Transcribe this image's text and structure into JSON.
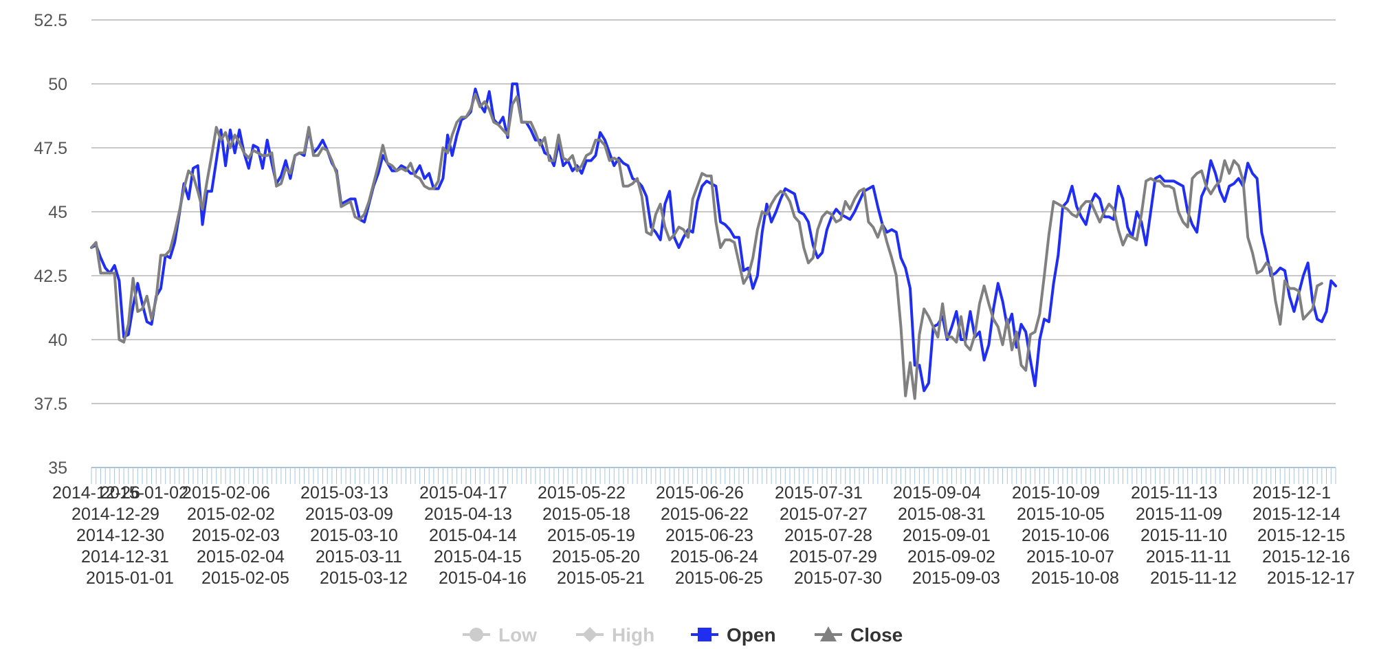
{
  "chart_data": {
    "type": "line",
    "title": "",
    "xlabel": "",
    "ylabel": "",
    "ylim": [
      35,
      52.5
    ],
    "y_ticks": [
      35,
      37.5,
      40,
      42.5,
      45,
      47.5,
      50,
      52.5
    ],
    "grid": true,
    "legend_position": "bottom-center",
    "x_tick_labels": [
      [
        "2014-12-26",
        "2015-01-02"
      ],
      [
        "2015-02-06",
        "2015-02-02",
        "2015-02-03",
        "2015-02-04",
        "2015-02-05"
      ],
      [
        "2015-03-13",
        "2015-03-09",
        "2015-03-10",
        "2015-03-11",
        "2015-03-12"
      ],
      [
        "2015-04-17",
        "2015-04-13",
        "2015-04-14",
        "2015-04-15",
        "2015-04-16"
      ],
      [
        "2015-05-22",
        "2015-05-18",
        "2015-05-19",
        "2015-05-20",
        "2015-05-21"
      ],
      [
        "2015-06-26",
        "2015-06-22",
        "2015-06-23",
        "2015-06-24",
        "2015-06-25"
      ],
      [
        "2015-07-31",
        "2015-07-27",
        "2015-07-28",
        "2015-07-29",
        "2015-07-30"
      ],
      [
        "2015-09-04",
        "2015-08-31",
        "2015-09-01",
        "2015-09-02",
        "2015-09-03"
      ],
      [
        "2015-10-09",
        "2015-10-05",
        "2015-10-06",
        "2015-10-07",
        "2015-10-08"
      ],
      [
        "2015-11-13",
        "2015-11-09",
        "2015-11-10",
        "2015-11-11",
        "2015-11-12"
      ],
      [
        "2015-12-1",
        "2015-12-14",
        "2015-12-15",
        "2015-12-16",
        "2015-12-17"
      ]
    ],
    "x_tick_label_extra": [
      "2014-12-29",
      "2014-12-30",
      "2014-12-31",
      "2015-01-01"
    ],
    "legend": [
      {
        "name": "Low",
        "visible": false,
        "marker": "circle",
        "color": "#cccccc"
      },
      {
        "name": "High",
        "visible": false,
        "marker": "diamond",
        "color": "#cccccc"
      },
      {
        "name": "Open",
        "visible": true,
        "marker": "square",
        "color": "#1f2ef0"
      },
      {
        "name": "Close",
        "visible": true,
        "marker": "triangle",
        "color": "#808080"
      }
    ],
    "series": [
      {
        "name": "Open",
        "color": "#1f2ef0",
        "values": [
          43.6,
          43.7,
          43.2,
          42.8,
          42.6,
          42.9,
          42.3,
          40.1,
          40.2,
          41.3,
          42.2,
          41.4,
          40.7,
          40.6,
          41.7,
          42.0,
          43.3,
          43.2,
          43.8,
          44.9,
          46.1,
          45.5,
          46.7,
          46.8,
          44.5,
          45.8,
          45.8,
          47.0,
          48.2,
          46.8,
          48.2,
          47.3,
          48.2,
          47.3,
          46.7,
          47.6,
          47.5,
          46.7,
          47.8,
          46.9,
          46.1,
          46.4,
          47.0,
          46.3,
          47.2,
          47.3,
          47.2,
          48.2,
          47.3,
          47.5,
          47.8,
          47.4,
          46.9,
          46.6,
          45.3,
          45.4,
          45.5,
          45.5,
          44.7,
          44.6,
          45.3,
          46.0,
          46.5,
          47.2,
          46.9,
          46.6,
          46.6,
          46.8,
          46.7,
          46.5,
          46.5,
          46.8,
          46.3,
          46.5,
          45.9,
          45.9,
          46.3,
          48.0,
          47.2,
          48.0,
          48.6,
          48.7,
          48.9,
          49.8,
          49.2,
          48.9,
          49.7,
          48.6,
          48.4,
          48.7,
          47.9,
          50.0,
          50.0,
          48.5,
          48.5,
          48.2,
          47.8,
          47.8,
          47.3,
          47.2,
          46.8,
          47.7,
          46.8,
          47.0,
          46.6,
          46.8,
          46.5,
          47.0,
          47.0,
          47.2,
          48.1,
          47.8,
          47.3,
          46.8,
          47.1,
          46.9,
          46.8,
          46.3,
          46.2,
          46.0,
          45.6,
          44.4,
          44.2,
          43.9,
          45.3,
          45.8,
          44.0,
          43.6,
          44.0,
          44.3,
          44.2,
          45.4,
          46.0,
          46.2,
          46.1,
          46.0,
          44.6,
          44.5,
          44.3,
          44.0,
          44.0,
          42.7,
          42.8,
          42.0,
          42.5,
          44.2,
          45.3,
          44.6,
          45.0,
          45.5,
          45.9,
          45.8,
          45.7,
          45.0,
          44.9,
          44.6,
          43.7,
          43.2,
          43.4,
          44.3,
          44.8,
          45.1,
          44.9,
          44.8,
          44.7,
          45.0,
          45.4,
          45.8,
          45.9,
          46.0,
          45.2,
          44.5,
          44.2,
          44.3,
          44.2,
          43.2,
          42.8,
          42.0,
          39.0,
          39.0,
          38.0,
          38.3,
          40.5,
          40.6,
          40.9,
          40.0,
          40.5,
          41.1,
          40.0,
          40.0,
          41.1,
          40.1,
          40.3,
          39.2,
          39.8,
          41.2,
          42.2,
          41.5,
          40.5,
          41.0,
          39.7,
          40.6,
          40.3,
          39.2,
          38.2,
          40.0,
          40.8,
          40.7,
          42.2,
          43.3,
          45.2,
          45.4,
          46.0,
          45.2,
          44.8,
          44.5,
          45.3,
          45.7,
          45.5,
          44.8,
          44.8,
          44.7,
          46.0,
          45.5,
          44.4,
          44.0,
          45.0,
          44.6,
          43.7,
          45.0,
          46.3,
          46.4,
          46.2,
          46.2,
          46.2,
          46.1,
          46.0,
          45.0,
          44.5,
          44.2,
          45.6,
          46.0,
          47.0,
          46.5,
          45.8,
          45.4,
          46.0,
          46.1,
          46.3,
          46.0,
          46.9,
          46.5,
          46.3,
          44.2,
          43.4,
          42.5,
          42.6,
          42.8,
          42.7,
          41.7,
          41.1,
          41.8,
          42.5,
          43.0,
          41.5,
          40.8,
          40.7,
          41.1,
          42.3,
          42.1
        ]
      },
      {
        "name": "Close",
        "color": "#808080",
        "values": [
          43.6,
          43.8,
          42.6,
          42.6,
          42.6,
          42.6,
          40.0,
          39.9,
          40.6,
          42.4,
          41.1,
          41.2,
          41.7,
          40.8,
          41.6,
          43.3,
          43.3,
          43.5,
          44.2,
          45.0,
          45.9,
          46.6,
          46.4,
          45.8,
          45.1,
          46.2,
          47.2,
          48.3,
          47.8,
          48.1,
          47.5,
          48.0,
          47.7,
          47.3,
          47.1,
          47.4,
          47.3,
          47.2,
          47.2,
          47.3,
          46.0,
          46.1,
          46.7,
          46.5,
          47.2,
          47.3,
          47.3,
          48.3,
          47.2,
          47.2,
          47.5,
          47.4,
          47.0,
          46.5,
          45.2,
          45.3,
          45.4,
          44.8,
          44.7,
          44.9,
          45.4,
          46.1,
          46.8,
          47.6,
          46.9,
          46.8,
          46.6,
          46.7,
          46.6,
          46.9,
          46.4,
          46.3,
          46.0,
          45.9,
          45.9,
          46.2,
          47.5,
          47.3,
          48.0,
          48.5,
          48.7,
          48.7,
          49.0,
          49.6,
          49.1,
          49.3,
          49.0,
          48.5,
          48.4,
          48.2,
          48.0,
          49.2,
          49.5,
          48.5,
          48.5,
          48.5,
          48.1,
          47.6,
          47.9,
          47.0,
          47.0,
          48.0,
          47.1,
          47.0,
          47.2,
          46.6,
          46.8,
          47.2,
          47.3,
          47.8,
          47.8,
          47.6,
          47.0,
          47.1,
          47.0,
          46.0,
          46.0,
          46.1,
          46.3,
          45.6,
          44.2,
          44.1,
          44.9,
          45.3,
          44.4,
          43.9,
          44.1,
          44.4,
          44.3,
          44.0,
          45.5,
          46.0,
          46.5,
          46.4,
          46.4,
          44.6,
          43.6,
          43.9,
          43.9,
          43.8,
          43.0,
          42.2,
          42.5,
          43.2,
          44.3,
          45.0,
          44.9,
          45.3,
          45.6,
          45.8,
          45.7,
          45.4,
          44.8,
          44.6,
          43.6,
          43.0,
          43.2,
          44.3,
          44.8,
          45.0,
          44.9,
          44.6,
          44.7,
          45.4,
          45.1,
          45.5,
          45.8,
          45.9,
          44.6,
          44.4,
          44.0,
          44.5,
          43.8,
          43.2,
          42.5,
          40.5,
          37.8,
          39.1,
          37.7,
          40.2,
          41.2,
          40.9,
          40.5,
          40.1,
          41.4,
          40.1,
          40.1,
          39.9,
          40.9,
          39.8,
          39.6,
          40.2,
          41.4,
          42.1,
          41.4,
          40.8,
          40.5,
          39.8,
          40.8,
          39.6,
          40.3,
          39.0,
          38.8,
          40.2,
          40.3,
          41.0,
          42.5,
          44.1,
          45.4,
          45.3,
          45.2,
          45.1,
          44.9,
          44.8,
          45.2,
          45.4,
          45.4,
          45.0,
          44.6,
          45.0,
          45.3,
          45.1,
          44.3,
          43.7,
          44.1,
          44.0,
          43.9,
          44.9,
          46.2,
          46.3,
          46.2,
          46.2,
          46.0,
          46.0,
          45.9,
          45.0,
          44.6,
          44.4,
          46.3,
          46.5,
          46.6,
          46.0,
          45.7,
          46.0,
          46.2,
          47.0,
          46.5,
          47.0,
          46.8,
          46.2,
          44.0,
          43.4,
          42.6,
          42.7,
          43.0,
          42.8,
          41.5,
          40.6,
          42.3,
          42.0,
          42.0,
          41.9,
          40.8,
          41.0,
          41.2,
          42.1,
          42.2
        ]
      }
    ]
  }
}
